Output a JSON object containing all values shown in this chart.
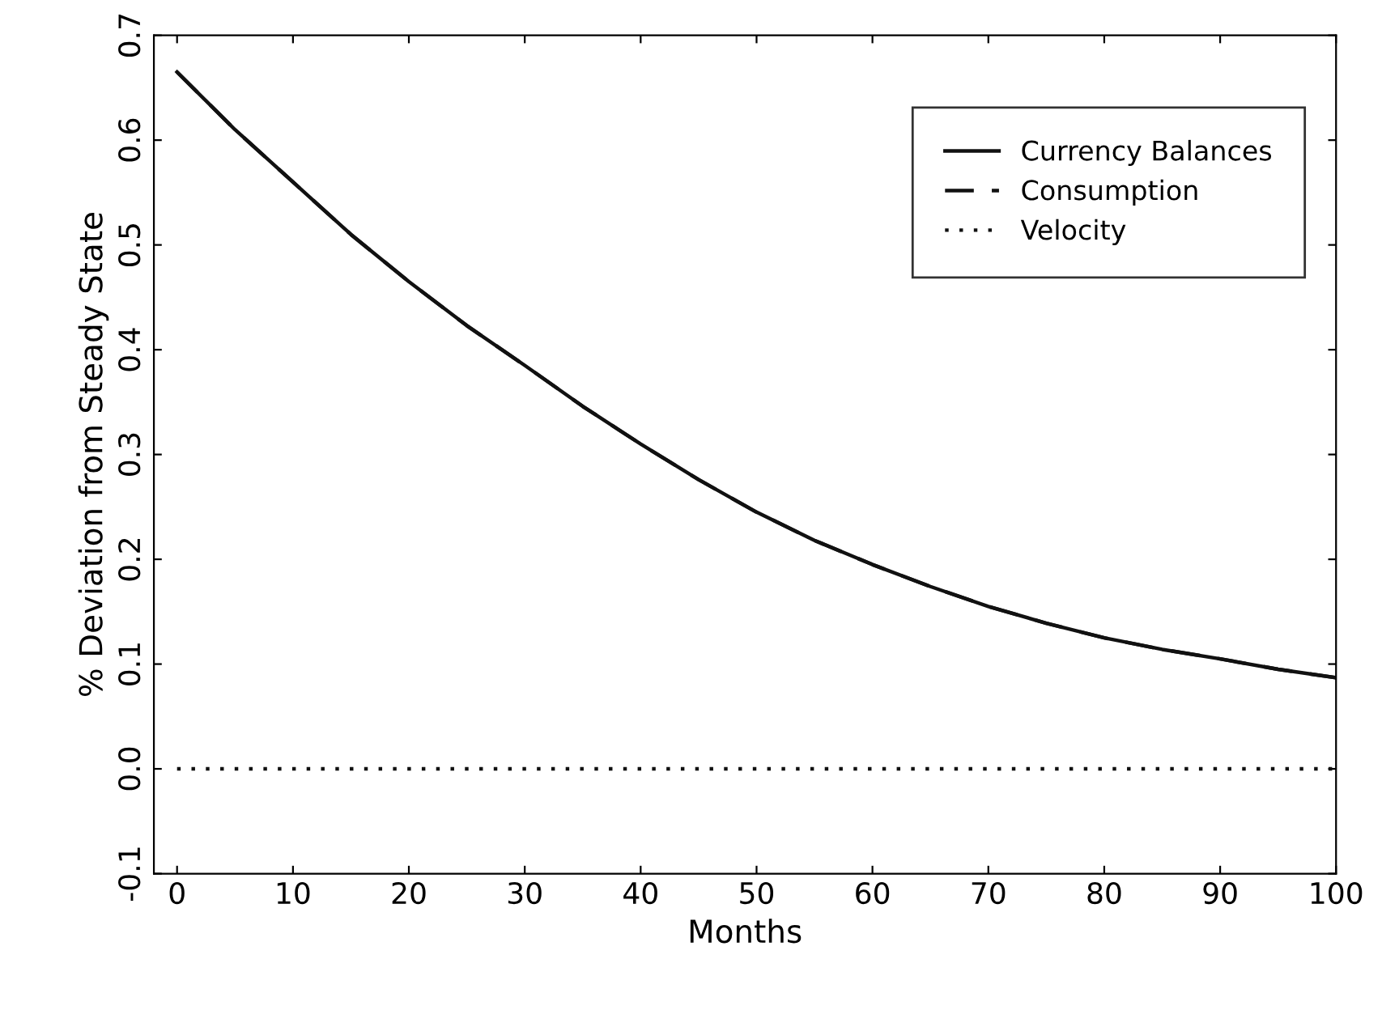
{
  "chart_data": {
    "type": "line",
    "xlabel": "Months",
    "ylabel": "% Deviation from Steady State",
    "x": [
      0,
      5,
      10,
      15,
      20,
      25,
      30,
      35,
      40,
      45,
      50,
      55,
      60,
      65,
      70,
      75,
      80,
      85,
      90,
      95,
      100
    ],
    "series": [
      {
        "name": "Currency Balances",
        "color": "#111111",
        "line_style": "solid",
        "values": [
          0.665,
          0.61,
          0.56,
          0.51,
          0.465,
          0.423,
          0.385,
          0.346,
          0.31,
          0.276,
          0.245,
          0.218,
          0.195,
          0.174,
          0.155,
          0.139,
          0.125,
          0.114,
          0.105,
          0.095,
          0.087
        ]
      },
      {
        "name": "Consumption",
        "color": "#111111",
        "line_style": "dashed",
        "values": [
          0.665,
          0.61,
          0.56,
          0.51,
          0.465,
          0.423,
          0.385,
          0.346,
          0.31,
          0.276,
          0.245,
          0.218,
          0.195,
          0.174,
          0.155,
          0.139,
          0.125,
          0.114,
          0.105,
          0.095,
          0.087
        ]
      },
      {
        "name": "Velocity",
        "color": "#111111",
        "line_style": "dotted",
        "values": [
          0,
          0,
          0,
          0,
          0,
          0,
          0,
          0,
          0,
          0,
          0,
          0,
          0,
          0,
          0,
          0,
          0,
          0,
          0,
          0,
          0
        ]
      }
    ],
    "xlim": [
      -2,
      100
    ],
    "xticks": [
      0,
      10,
      20,
      30,
      40,
      50,
      60,
      70,
      80,
      90,
      100
    ],
    "ylim": [
      -0.1,
      0.7
    ],
    "yticks": [
      {
        "value": -0.1,
        "label": "-0.1"
      },
      {
        "value": 0.0,
        "label": "0.0"
      },
      0.1,
      0.2,
      0.3,
      0.4,
      0.5,
      0.6,
      0.7
    ],
    "grid": false,
    "legend": "top right",
    "marker": "none"
  }
}
